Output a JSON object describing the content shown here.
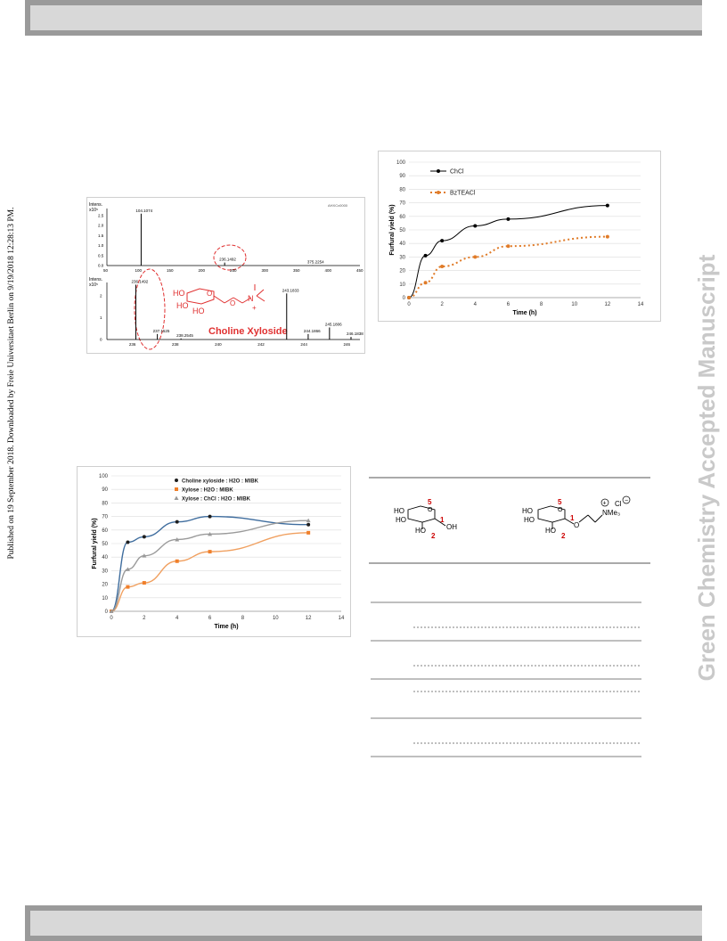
{
  "side_note": "Published on 19 September 2018. Downloaded by Freie Universitaet Berlin on 9/19/2018 12:28:13 PM.",
  "watermark": "Green Chemistry Accepted Manuscript",
  "ms_figure": {
    "top_ylabel": "Intens.",
    "top_exp": "x10⁵",
    "top_peaks": [
      "104.1074",
      "236.1492",
      "375.2254"
    ],
    "top_corner": "AHXCx0000",
    "top_ticks_y": [
      "2.5",
      "2.0",
      "1.5",
      "1.0",
      "0.5",
      "0.0"
    ],
    "top_ticks_x": [
      "50",
      "100",
      "150",
      "200",
      "250",
      "300",
      "350",
      "400",
      "450"
    ],
    "bot_ylabel": "Intens.",
    "bot_exp": "x10⁵",
    "bot_peaks": [
      "236.1492",
      "237.1525",
      "238.2545",
      "243.1833",
      "244.1866",
      "245.1806",
      "246.1838"
    ],
    "bot_ticks_y": [
      "2",
      "1",
      "0"
    ],
    "bot_ticks_x": [
      "236",
      "238",
      "240",
      "242",
      "244",
      "246"
    ],
    "compound_label": "Choline Xyloside"
  },
  "chart1": {
    "chart_data": {
      "type": "line",
      "xlabel": "Time (h)",
      "ylabel": "Furfural yield (%)",
      "xlim": [
        0,
        14
      ],
      "ylim": [
        0,
        100
      ],
      "x_ticks": [
        "0",
        "2",
        "4",
        "6",
        "8",
        "10",
        "12",
        "14"
      ],
      "y_ticks": [
        "0",
        "10",
        "20",
        "30",
        "40",
        "50",
        "60",
        "70",
        "80",
        "90",
        "100"
      ],
      "series": [
        {
          "name": "ChCl",
          "color": "#000000",
          "x": [
            0,
            1,
            2,
            4,
            6,
            12
          ],
          "y": [
            0,
            31,
            42,
            53,
            58,
            68
          ]
        },
        {
          "name": "BzTEACl",
          "color": "#e07b28",
          "x": [
            0,
            1,
            2,
            4,
            6,
            12
          ],
          "y": [
            0,
            11,
            23,
            30,
            38,
            45
          ]
        }
      ],
      "legend": "top-left",
      "grid": true
    }
  },
  "chart2": {
    "chart_data": {
      "type": "line",
      "xlabel": "Time (h)",
      "ylabel": "Furfural yield (%)",
      "xlim": [
        0,
        14
      ],
      "ylim": [
        0,
        100
      ],
      "x_ticks": [
        "0",
        "2",
        "4",
        "6",
        "8",
        "10",
        "12",
        "14"
      ],
      "y_ticks": [
        "0",
        "10",
        "20",
        "30",
        "40",
        "50",
        "60",
        "70",
        "80",
        "90",
        "100"
      ],
      "series": [
        {
          "name": "Choline xyloside : H2O : MIBK",
          "color": "#1f1f1f",
          "x": [
            0,
            1,
            2,
            4,
            6,
            12
          ],
          "y": [
            0,
            51,
            55,
            66,
            70,
            64
          ]
        },
        {
          "name": "Xylose : H2O : MIBK",
          "color": "#f07f2a",
          "x": [
            0,
            1,
            2,
            4,
            6,
            12
          ],
          "y": [
            0,
            18,
            21,
            37,
            44,
            58
          ]
        },
        {
          "name": "Xylose : ChCl : H2O : MIBK",
          "color": "#9a9a9a",
          "x": [
            0,
            1,
            2,
            4,
            6,
            12
          ],
          "y": [
            0,
            31,
            41,
            53,
            57,
            67
          ]
        }
      ],
      "legend": "top",
      "grid": true
    }
  },
  "scheme": {
    "left_labels": {
      "c5": "5",
      "c1": "1",
      "c2": "2"
    },
    "right_labels": {
      "c5": "5",
      "c1": "1",
      "c2": "2"
    }
  }
}
